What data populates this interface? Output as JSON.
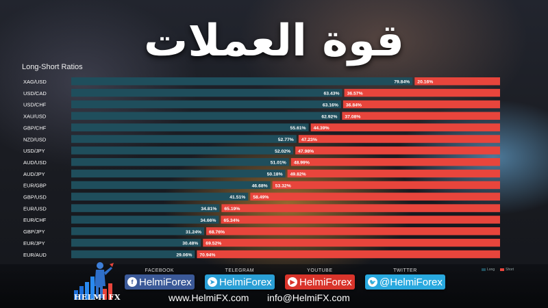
{
  "title": "قوة العملات",
  "chart_data": {
    "type": "bar",
    "subtitle": "Long-Short Ratios",
    "stacked": true,
    "orientation": "horizontal",
    "categories": [
      "XAG/USD",
      "USD/CAD",
      "USD/CHF",
      "XAU/USD",
      "GBP/CHF",
      "NZD/USD",
      "USD/JPY",
      "AUD/USD",
      "AUD/JPY",
      "EUR/GBP",
      "GBP/USD",
      "EUR/USD",
      "EUR/CHF",
      "GBP/JPY",
      "EUR/JPY",
      "EUR/AUD"
    ],
    "series": [
      {
        "name": "Long",
        "color": "#1f4e5c",
        "values": [
          79.84,
          63.43,
          63.16,
          62.92,
          55.61,
          52.77,
          52.02,
          51.01,
          50.18,
          46.68,
          41.51,
          34.81,
          34.66,
          31.24,
          30.48,
          29.06
        ],
        "labels": [
          "79.84%",
          "63.43%",
          "63.16%",
          "62.92%",
          "55.61%",
          "52.77%",
          "52.02%",
          "51.01%",
          "50.18%",
          "46.68%",
          "41.51%",
          "34.81%",
          "34.66%",
          "31.24%",
          "30.48%",
          "29.06%"
        ]
      },
      {
        "name": "Short",
        "color": "#e8453c",
        "values": [
          20.16,
          36.57,
          36.84,
          37.08,
          44.39,
          47.23,
          47.98,
          48.99,
          49.82,
          53.32,
          58.49,
          65.19,
          65.34,
          68.76,
          69.52,
          70.94
        ],
        "labels": [
          "20.16%",
          "36.57%",
          "36.84%",
          "37.08%",
          "44.39%",
          "47.23%",
          "47.98%",
          "48.99%",
          "49.82%",
          "53.32%",
          "58.49%",
          "65.19%",
          "65.34%",
          "68.76%",
          "69.52%",
          "70.94%"
        ]
      }
    ],
    "xlim": [
      0,
      100
    ]
  },
  "brand": {
    "name": "HELMI FX"
  },
  "social": [
    {
      "caption": "FACEBOOK",
      "handle": "HelmiForex",
      "icon": "f",
      "color": "#3b5998"
    },
    {
      "caption": "TELEGRAM",
      "handle": "HelmiForex",
      "icon": "➤",
      "color": "#2a9fd6"
    },
    {
      "caption": "YOUTUBE",
      "handle": "HelmiForex",
      "icon": "▶",
      "color": "#d9342b"
    },
    {
      "caption": "TWITTER",
      "handle": "@HelmiForex",
      "icon": "🐦",
      "color": "#29a9df"
    }
  ],
  "contact": {
    "website": "www.HelmiFX.com",
    "email": "info@HelmiFX.com"
  }
}
